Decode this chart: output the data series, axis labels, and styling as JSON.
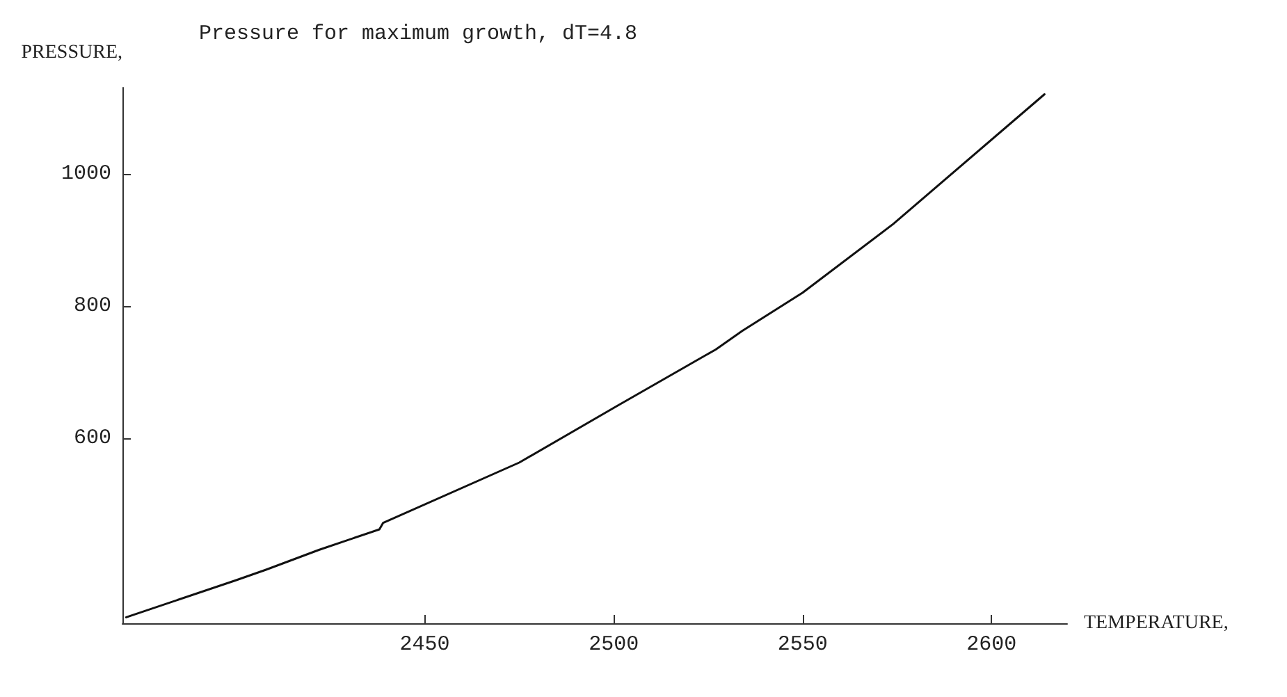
{
  "chart_data": {
    "type": "line",
    "title": "Pressure for maximum growth, dT=4.8",
    "xlabel": "TEMPERATURE,",
    "ylabel": "PRESSURE,",
    "series": [
      {
        "color": "#111111",
        "x": [
          2371,
          2400,
          2408,
          2422,
          2438,
          2439,
          2475,
          2501,
          2527,
          2534,
          2550,
          2574,
          2614
        ],
        "values": [
          329,
          385,
          401,
          431,
          462,
          472,
          563,
          649,
          734,
          762,
          820,
          924,
          1120
        ]
      }
    ],
    "xlim": [
      2370,
      2620
    ],
    "xticks": [
      2450,
      2500,
      2550,
      2600
    ],
    "ylim": [
      320,
      1130
    ],
    "yticks": [
      600,
      800,
      1000
    ],
    "grid": false,
    "legend": false,
    "marker": "none",
    "line_style": "solid"
  }
}
